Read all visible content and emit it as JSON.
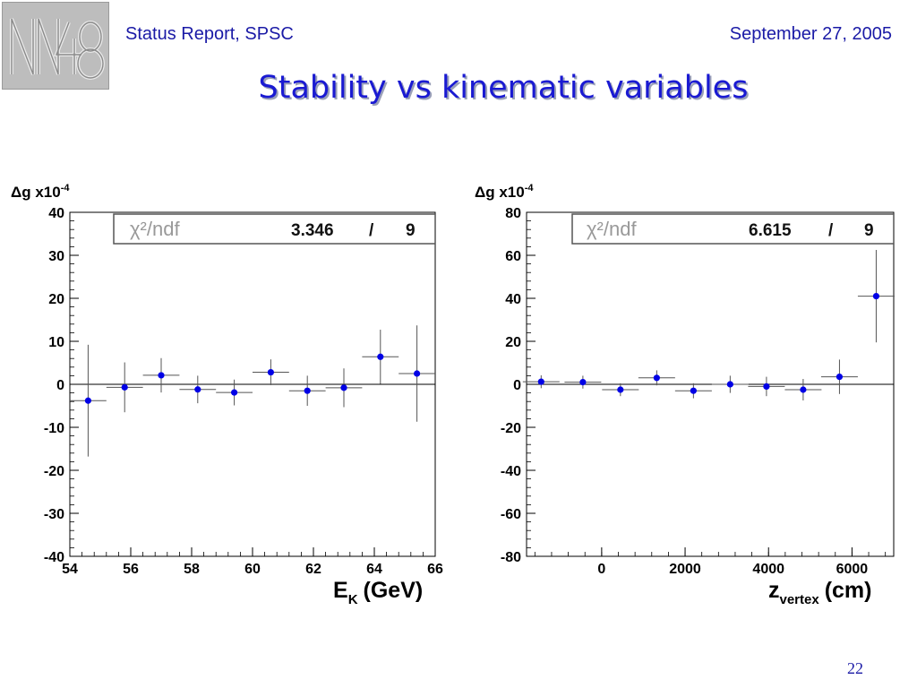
{
  "header": {
    "left": "Status Report, SPSC",
    "right": "September 27, 2005",
    "title": "Stability vs kinematic variables"
  },
  "page_number": "22",
  "colors": {
    "header_text": "#1a1aa6",
    "title": "#1a1ad2",
    "marker": "#0000e6",
    "error_bar": "#555555"
  },
  "chart_data": [
    {
      "type": "scatter",
      "ylabel": "Δg x10",
      "ylabel_exponent": "-4",
      "xlabel": "E",
      "xlabel_sub": "K",
      "xlabel_unit": "(GeV)",
      "xlim": [
        54,
        66
      ],
      "ylim": [
        -40,
        40
      ],
      "xticks": [
        54,
        56,
        58,
        60,
        62,
        64,
        66
      ],
      "yticks": [
        40,
        30,
        20,
        10,
        0,
        -10,
        -20,
        -30,
        -40
      ],
      "fit_box": {
        "label": "χ²/ndf",
        "chi2": "3.346",
        "sep": "/",
        "ndf": "9"
      },
      "points": [
        {
          "x": 54.6,
          "y": -3.8,
          "xerr": 0.6,
          "yerr": 13
        },
        {
          "x": 55.8,
          "y": -0.7,
          "xerr": 0.6,
          "yerr": 5.8
        },
        {
          "x": 57.0,
          "y": 2.1,
          "xerr": 0.6,
          "yerr": 4.0
        },
        {
          "x": 58.2,
          "y": -1.2,
          "xerr": 0.6,
          "yerr": 3.2
        },
        {
          "x": 59.4,
          "y": -1.9,
          "xerr": 0.6,
          "yerr": 3.0
        },
        {
          "x": 60.6,
          "y": 2.8,
          "xerr": 0.6,
          "yerr": 3.0
        },
        {
          "x": 61.8,
          "y": -1.5,
          "xerr": 0.6,
          "yerr": 3.5
        },
        {
          "x": 63.0,
          "y": -0.8,
          "xerr": 0.6,
          "yerr": 4.5
        },
        {
          "x": 64.2,
          "y": 6.4,
          "xerr": 0.6,
          "yerr": 6.3
        },
        {
          "x": 65.4,
          "y": 2.5,
          "xerr": 0.6,
          "yerr": 11.2
        }
      ]
    },
    {
      "type": "scatter",
      "ylabel": "Δg x10",
      "ylabel_exponent": "-4",
      "xlabel": "z",
      "xlabel_sub": "vertex",
      "xlabel_unit": "(cm)",
      "xlim": [
        -1800,
        7000
      ],
      "ylim": [
        -80,
        80
      ],
      "xticks": [
        0,
        2000,
        4000,
        6000
      ],
      "yticks": [
        80,
        60,
        40,
        20,
        0,
        -20,
        -40,
        -60,
        -80
      ],
      "fit_box": {
        "label": "χ²/ndf",
        "chi2": "6.615",
        "sep": "/",
        "ndf": "9"
      },
      "points": [
        {
          "x": -1450,
          "y": 1.2,
          "xerr": 440,
          "yerr": 3.0
        },
        {
          "x": -450,
          "y": 1.0,
          "xerr": 440,
          "yerr": 3.0
        },
        {
          "x": 450,
          "y": -2.5,
          "xerr": 440,
          "yerr": 3.0
        },
        {
          "x": 1320,
          "y": 3.0,
          "xerr": 440,
          "yerr": 3.5
        },
        {
          "x": 2200,
          "y": -3.0,
          "xerr": 440,
          "yerr": 3.5
        },
        {
          "x": 3080,
          "y": 0.0,
          "xerr": 440,
          "yerr": 4.0
        },
        {
          "x": 3950,
          "y": -1.0,
          "xerr": 440,
          "yerr": 4.5
        },
        {
          "x": 4830,
          "y": -2.5,
          "xerr": 440,
          "yerr": 5.0
        },
        {
          "x": 5700,
          "y": 3.5,
          "xerr": 440,
          "yerr": 8.0
        },
        {
          "x": 6580,
          "y": 41.0,
          "xerr": 440,
          "yerr": 21.5
        }
      ]
    }
  ]
}
